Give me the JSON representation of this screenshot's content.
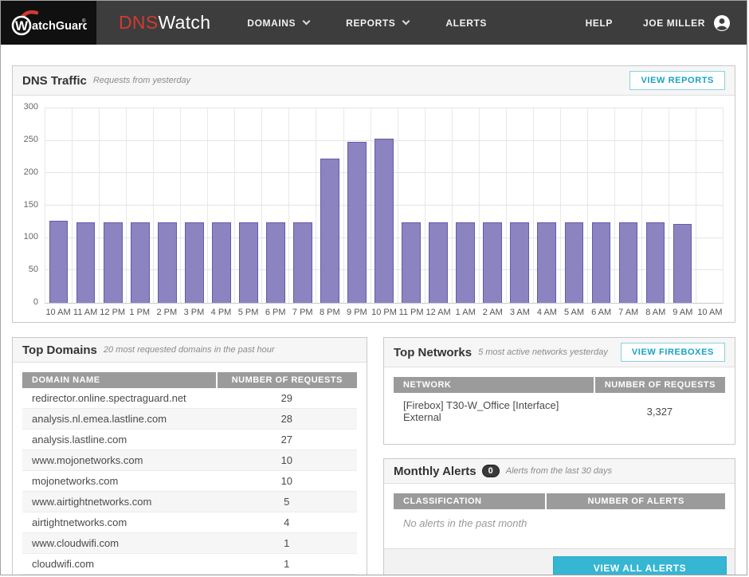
{
  "nav": {
    "logo_w": "W",
    "logo_rest": "atchGuard",
    "brand_dns": "DNS",
    "brand_watch": "Watch",
    "items": [
      {
        "label": "DOMAINS",
        "dropdown": true
      },
      {
        "label": "REPORTS",
        "dropdown": true
      },
      {
        "label": "ALERTS",
        "dropdown": false
      }
    ],
    "help": "HELP",
    "user": "JOE MILLER"
  },
  "dns_traffic": {
    "title": "DNS Traffic",
    "subtitle": "Requests from yesterday",
    "button": "VIEW REPORTS"
  },
  "chart_data": {
    "type": "bar",
    "title": "DNS Traffic",
    "subtitle": "Requests from yesterday",
    "categories": [
      "10 AM",
      "11 AM",
      "12 PM",
      "1 PM",
      "2 PM",
      "3 PM",
      "4 PM",
      "5 PM",
      "6 PM",
      "7 PM",
      "8 PM",
      "9 PM",
      "10 PM",
      "11 PM",
      "12 AM",
      "1 AM",
      "2 AM",
      "3 AM",
      "4 AM",
      "5 AM",
      "6 AM",
      "7 AM",
      "8 AM",
      "9 AM"
    ],
    "values": [
      127,
      124,
      124,
      124,
      124,
      124,
      124,
      124,
      124,
      124,
      222,
      248,
      253,
      124,
      124,
      124,
      124,
      124,
      124,
      124,
      124,
      124,
      124,
      122
    ],
    "x_tick_labels": [
      "10 AM",
      "11 AM",
      "12 PM",
      "1 PM",
      "2 PM",
      "3 PM",
      "4 PM",
      "5 PM",
      "6 PM",
      "7 PM",
      "8 PM",
      "9 PM",
      "10 PM",
      "11 PM",
      "12 AM",
      "1 AM",
      "2 AM",
      "3 AM",
      "4 AM",
      "5 AM",
      "6 AM",
      "7 AM",
      "8 AM",
      "9 AM",
      "10 AM"
    ],
    "ylim": [
      0,
      300
    ],
    "yticks": [
      0,
      50,
      100,
      150,
      200,
      250,
      300
    ],
    "grid": true,
    "legend": false,
    "bar_color": "#8b84c1",
    "bar_border": "#655baa"
  },
  "top_domains": {
    "title": "Top Domains",
    "subtitle": "20 most requested domains in the past hour",
    "columns": [
      "DOMAIN NAME",
      "NUMBER OF REQUESTS"
    ],
    "rows": [
      [
        "redirector.online.spectraguard.net",
        "29"
      ],
      [
        "analysis.nl.emea.lastline.com",
        "28"
      ],
      [
        "analysis.lastline.com",
        "27"
      ],
      [
        "www.mojonetworks.com",
        "10"
      ],
      [
        "mojonetworks.com",
        "10"
      ],
      [
        "www.airtightnetworks.com",
        "5"
      ],
      [
        "airtightnetworks.com",
        "4"
      ],
      [
        "www.cloudwifi.com",
        "1"
      ],
      [
        "cloudwifi.com",
        "1"
      ]
    ]
  },
  "top_networks": {
    "title": "Top Networks",
    "subtitle": "5 most active networks yesterday",
    "button": "VIEW FIREBOXES",
    "columns": [
      "NETWORK",
      "NUMBER OF REQUESTS"
    ],
    "rows": [
      [
        "[Firebox] T30-W_Office [Interface] External",
        "3,327"
      ]
    ]
  },
  "monthly_alerts": {
    "title": "Monthly Alerts",
    "badge": "0",
    "subtitle": "Alerts from the last 30 days",
    "columns": [
      "CLASSIFICATION",
      "NUMBER OF ALERTS"
    ],
    "empty_message": "No alerts in the past month",
    "button": "VIEW ALL ALERTS"
  },
  "colors": {
    "nav_bg": "#3d3d3d",
    "logo_bg": "#101010",
    "brand_red": "#d23a31",
    "accent_teal": "#35b6d2",
    "teal_text": "#17a3c5",
    "table_header_bg": "#9b9b9b",
    "bar_fill": "#8b84c1",
    "bar_border": "#655baa"
  }
}
